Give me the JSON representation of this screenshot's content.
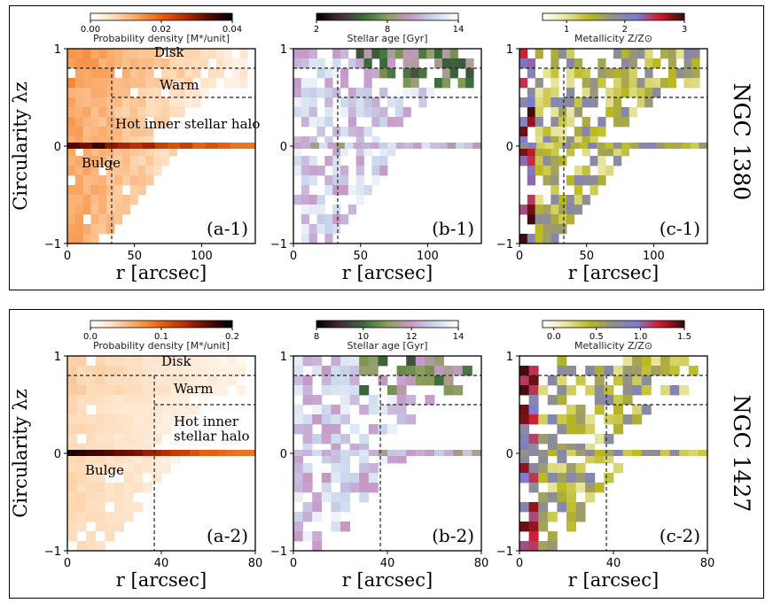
{
  "chart_data": [
    {
      "type": "heatmap",
      "id": "a-1",
      "galaxy": "NGC 1380",
      "panel_label": "(a-1)",
      "quantity": "Probability density",
      "colorbar_label": "Probability density [M*/unit]",
      "colorbar_ticks": [
        "0.00",
        "0.02",
        "0.04"
      ],
      "colormap": [
        "#ffffff",
        "#fddbb9",
        "#f9a05a",
        "#e8600c",
        "#b62d05",
        "#5b0a02",
        "#000000"
      ],
      "xlim": [
        0,
        140
      ],
      "ylim": [
        -1,
        1
      ],
      "xticks": [
        "0",
        "50",
        "100"
      ],
      "yticks": [
        "−1",
        "0",
        "1"
      ],
      "xlabel": "r [arcsec]",
      "ylabel": "Circularity λz",
      "show_ylabel": true,
      "divider_r": 33,
      "cold_lz": 0.8,
      "warm_lz": 0.5,
      "annotations": [
        "Disk",
        "Warm",
        "Hot inner stellar halo",
        "Bulge"
      ],
      "zero_row": [
        0.85,
        0.8,
        0.9,
        0.75,
        0.7,
        0.65,
        0.7,
        0.6,
        0.55,
        0.6,
        0.5,
        0.55,
        0.5,
        0.45,
        0.45
      ]
    },
    {
      "type": "heatmap",
      "id": "b-1",
      "galaxy": "NGC 1380",
      "panel_label": "(b-1)",
      "quantity": "Stellar age",
      "colorbar_label": "Stellar age [Gyr]",
      "colorbar_ticks": [
        "2",
        "8",
        "14"
      ],
      "colormap": [
        "#000000",
        "#4a2d3c",
        "#3a6b3a",
        "#8b9e5a",
        "#c79ac9",
        "#c8d6ec",
        "#ffffff"
      ],
      "xlim": [
        0,
        140
      ],
      "ylim": [
        -1,
        1
      ],
      "xticks": [
        "0",
        "50",
        "100"
      ],
      "yticks": [
        "−1",
        "0",
        "1"
      ],
      "xlabel": "r [arcsec]",
      "ylabel": "",
      "show_ylabel": false,
      "divider_r": 33,
      "cold_lz": 0.8,
      "warm_lz": 0.5
    },
    {
      "type": "heatmap",
      "id": "c-1",
      "galaxy": "NGC 1380",
      "panel_label": "(c-1)",
      "quantity": "Metallicity",
      "colorbar_label": "Metallicity Z/Z⊙",
      "colorbar_ticks": [
        "1",
        "2",
        "3"
      ],
      "colormap": [
        "#ffffff",
        "#e6e49a",
        "#b9b81f",
        "#8f8f8f",
        "#7d7dd0",
        "#d11a2a",
        "#3a0b0b"
      ],
      "xlim": [
        0,
        140
      ],
      "ylim": [
        -1,
        1
      ],
      "xticks": [
        "0",
        "50",
        "100"
      ],
      "yticks": [
        "−1",
        "0",
        "1"
      ],
      "xlabel": "r [arcsec]",
      "ylabel": "",
      "show_ylabel": false,
      "divider_r": 33,
      "cold_lz": 0.8,
      "warm_lz": 0.5
    },
    {
      "type": "heatmap",
      "id": "a-2",
      "galaxy": "NGC 1427",
      "panel_label": "(a-2)",
      "quantity": "Probability density",
      "colorbar_label": "Probability density [M*/unit]",
      "colorbar_ticks": [
        "0.0",
        "0.1",
        "0.2"
      ],
      "colormap": [
        "#ffffff",
        "#fddbb9",
        "#f9a05a",
        "#e8600c",
        "#b62d05",
        "#5b0a02",
        "#000000"
      ],
      "xlim": [
        0,
        80
      ],
      "ylim": [
        -1,
        1
      ],
      "xticks": [
        "0",
        "40",
        "80"
      ],
      "yticks": [
        "−1",
        "0",
        "1"
      ],
      "xlabel": "r [arcsec]",
      "ylabel": "Circularity λz",
      "show_ylabel": true,
      "divider_r": 37,
      "cold_lz": 0.8,
      "warm_lz": 0.5,
      "annotations": [
        "Disk",
        "Warm",
        "Hot inner",
        "stellar halo",
        "Bulge"
      ],
      "zero_row": [
        0.95,
        0.92,
        0.9,
        0.88,
        0.85,
        0.82,
        0.8,
        0.78,
        0.72,
        0.7,
        0.66,
        0.62,
        0.6,
        0.55,
        0.5,
        0.5,
        0.48,
        0.46,
        0.45,
        0.45
      ]
    },
    {
      "type": "heatmap",
      "id": "b-2",
      "galaxy": "NGC 1427",
      "panel_label": "(b-2)",
      "quantity": "Stellar age",
      "colorbar_label": "Stellar age [Gyr]",
      "colorbar_ticks": [
        "8",
        "10",
        "12",
        "14"
      ],
      "colormap": [
        "#000000",
        "#4a2d3c",
        "#3a6b3a",
        "#8b9e5a",
        "#c79ac9",
        "#c8d6ec",
        "#ffffff"
      ],
      "xlim": [
        0,
        80
      ],
      "ylim": [
        -1,
        1
      ],
      "xticks": [
        "0",
        "40",
        "80"
      ],
      "yticks": [
        "−1",
        "0",
        "1"
      ],
      "xlabel": "r [arcsec]",
      "ylabel": "",
      "show_ylabel": false,
      "divider_r": 37,
      "cold_lz": 0.8,
      "warm_lz": 0.5
    },
    {
      "type": "heatmap",
      "id": "c-2",
      "galaxy": "NGC 1427",
      "panel_label": "(c-2)",
      "quantity": "Metallicity",
      "colorbar_label": "Metallicity Z/Z⊙",
      "colorbar_ticks": [
        "0.0",
        "0.5",
        "1.0",
        "1.5"
      ],
      "colormap": [
        "#ffffff",
        "#e6e49a",
        "#b9b81f",
        "#8f8f8f",
        "#7d7dd0",
        "#d11a2a",
        "#3a0b0b"
      ],
      "xlim": [
        0,
        80
      ],
      "ylim": [
        -1,
        1
      ],
      "xticks": [
        "0",
        "40",
        "80"
      ],
      "yticks": [
        "−1",
        "0",
        "1"
      ],
      "xlabel": "r [arcsec]",
      "ylabel": "",
      "show_ylabel": false,
      "divider_r": 37,
      "cold_lz": 0.8,
      "warm_lz": 0.5
    }
  ],
  "galaxies": [
    "NGC 1380",
    "NGC 1427"
  ]
}
